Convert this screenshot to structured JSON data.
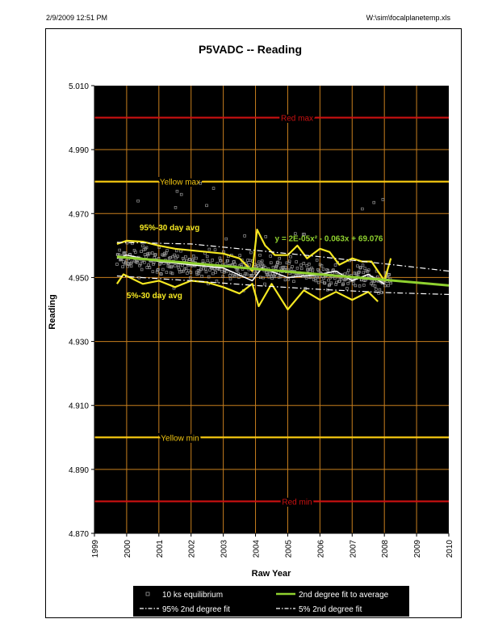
{
  "header": {
    "left": "2/9/2009 12:51 PM",
    "right": "W:\\sim\\focalplanetemp.xls"
  },
  "chart_data": {
    "type": "scatter",
    "title": "P5VADC -- Reading",
    "xlabel": "Raw Year",
    "ylabel": "Reading",
    "xlim": [
      1999,
      2010
    ],
    "ylim": [
      4.87,
      5.01
    ],
    "x_ticks": [
      "1999",
      "2000",
      "2001",
      "2002",
      "2003",
      "2004",
      "2005",
      "2006",
      "2007",
      "2008",
      "2009",
      "2010"
    ],
    "y_ticks": [
      "5.010",
      "4.990",
      "4.970",
      "4.950",
      "4.930",
      "4.910",
      "4.890",
      "4.870"
    ],
    "grid": true,
    "plot_background": "#000000",
    "grid_color": "#c87f1e",
    "limits": [
      {
        "label": "Red max",
        "y": 5.0,
        "color": "#cc1111"
      },
      {
        "label": "Yellow max",
        "y": 4.98,
        "color": "#f2c511"
      },
      {
        "label": "Yellow min",
        "y": 4.9,
        "color": "#f2c511"
      },
      {
        "label": "Red min",
        "y": 4.88,
        "color": "#cc1111"
      }
    ],
    "annotations": {
      "p95_label": "95%-30 day avg",
      "p5_label": "5%-30 day avg",
      "fit_equation": "y = 2E-05x² - 0.063x + 69.076"
    },
    "series": [
      {
        "name": "10 ks equilibrium",
        "style": "square markers",
        "color": "#9a9a9a",
        "x_range": [
          1999.7,
          2008.2
        ],
        "y_center_start": 4.956,
        "y_center_end": 4.949,
        "y_spread": 0.004
      },
      {
        "name": "2nd degree fit to average",
        "style": "line",
        "color": "#8fd12f",
        "x": [
          1999.7,
          2002,
          2004,
          2006,
          2008,
          2010
        ],
        "y": [
          4.9565,
          4.9545,
          4.9527,
          4.951,
          4.9493,
          4.9475
        ]
      },
      {
        "name": "95% 2nd degree fit",
        "style": "dash-dot",
        "color": "#ffffff",
        "x": [
          1999.7,
          2002,
          2004,
          2006,
          2008,
          2010
        ],
        "y": [
          4.961,
          4.9605,
          4.9585,
          4.9565,
          4.9543,
          4.952
        ]
      },
      {
        "name": "5% 2nd degree fit",
        "style": "dash-dot",
        "color": "#ffffff",
        "x": [
          1999.7,
          2002,
          2004,
          2006,
          2008,
          2010
        ],
        "y": [
          4.9505,
          4.949,
          4.9475,
          4.9463,
          4.9453,
          4.9447
        ]
      },
      {
        "name": "95%-30 day avg",
        "style": "line",
        "color": "#f5e822",
        "x": [
          1999.7,
          2000,
          2000.5,
          2001,
          2001.5,
          2002,
          2002.5,
          2003,
          2003.5,
          2003.9,
          2004.05,
          2004.3,
          2004.6,
          2005,
          2005.3,
          2005.6,
          2006,
          2006.3,
          2006.6,
          2007,
          2007.3,
          2007.6,
          2007.8,
          2008,
          2008.2
        ],
        "y": [
          4.9605,
          4.9615,
          4.9612,
          4.96,
          4.959,
          4.9585,
          4.958,
          4.9575,
          4.956,
          4.952,
          4.965,
          4.96,
          4.957,
          4.957,
          4.96,
          4.956,
          4.959,
          4.958,
          4.954,
          4.956,
          4.955,
          4.955,
          4.952,
          4.949,
          4.956
        ]
      },
      {
        "name": "5%-30 day avg",
        "style": "line",
        "color": "#f5e822",
        "x": [
          1999.7,
          1999.9,
          2000.5,
          2001,
          2001.5,
          2002,
          2002.5,
          2003,
          2003.5,
          2003.9,
          2004.1,
          2004.5,
          2005,
          2005.5,
          2006,
          2006.5,
          2007,
          2007.5,
          2007.8
        ],
        "y": [
          4.948,
          4.951,
          4.948,
          4.949,
          4.947,
          4.949,
          4.9485,
          4.947,
          4.945,
          4.948,
          4.941,
          4.948,
          4.94,
          4.946,
          4.943,
          4.9455,
          4.943,
          4.9455,
          4.9425
        ]
      },
      {
        "name": "30 day avg",
        "style": "line",
        "color": "#ffffff",
        "x": [
          1999.7,
          2000,
          2001,
          2002,
          2003,
          2003.9,
          2004.2,
          2005,
          2006,
          2006.5,
          2007,
          2007.5,
          2008
        ],
        "y": [
          4.956,
          4.957,
          4.955,
          4.954,
          4.953,
          4.949,
          4.953,
          4.95,
          4.951,
          4.952,
          4.949,
          4.951,
          4.948
        ]
      }
    ],
    "legend": {
      "placement": "bottom",
      "entries": [
        {
          "label": "10 ks equilibrium"
        },
        {
          "label": "2nd degree fit to average"
        },
        {
          "label": "95% 2nd degree fit"
        },
        {
          "label": "5% 2nd degree fit"
        }
      ]
    }
  }
}
